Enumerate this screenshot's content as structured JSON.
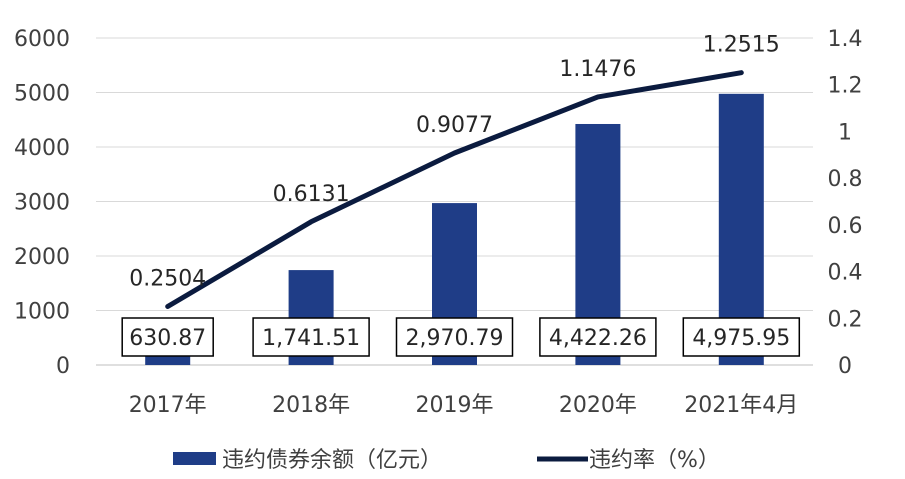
{
  "colors": {
    "bar": "#1f3d87",
    "line": "#0b1b3f",
    "grid": "#d9d9d9",
    "axis": "#bfbfbf",
    "label_box": "#000000"
  },
  "chart_data": {
    "type": "bar",
    "categories": [
      "2017年",
      "2018年",
      "2019年",
      "2020年",
      "2021年4月"
    ],
    "y_left": {
      "ylim": [
        0,
        6000
      ],
      "ticks": [
        "0",
        "1000",
        "2000",
        "3000",
        "4000",
        "5000",
        "6000"
      ]
    },
    "y_right": {
      "ylim": [
        0,
        1.4
      ],
      "ticks": [
        "0",
        "0.2",
        "0.4",
        "0.6",
        "0.8",
        "1",
        "1.2",
        "1.4"
      ]
    },
    "grid": true,
    "legend_position": "bottom",
    "series": [
      {
        "name": "违约债券余额（亿元）",
        "type": "bar",
        "axis": "left",
        "values": [
          630.87,
          1741.51,
          2970.79,
          4422.26,
          4975.95
        ],
        "labels": [
          "630.87",
          "1,741.51",
          "2,970.79",
          "4,422.26",
          "4,975.95"
        ]
      },
      {
        "name": "违约率（%）",
        "type": "line",
        "axis": "right",
        "values": [
          0.2504,
          0.6131,
          0.9077,
          1.1476,
          1.2515
        ],
        "labels": [
          "0.2504",
          "0.6131",
          "0.9077",
          "1.1476",
          "1.2515"
        ]
      }
    ]
  }
}
